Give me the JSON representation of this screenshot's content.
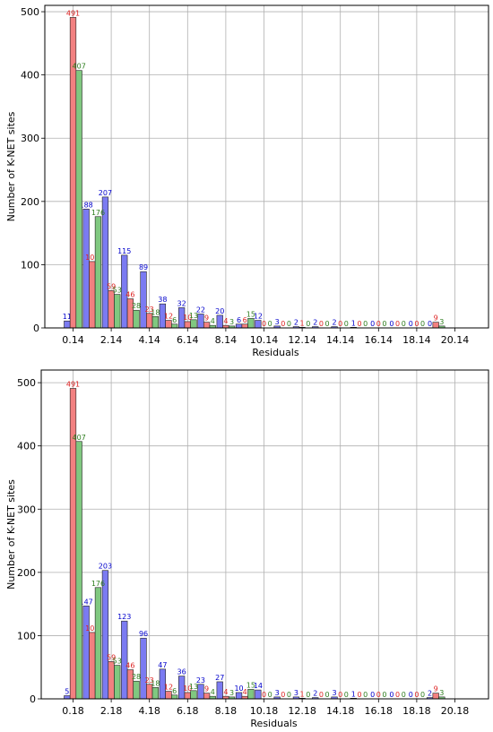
{
  "chart_data": [
    {
      "type": "bar",
      "xlabel": "Residuals",
      "ylabel": "Number of K-NET sites",
      "ylim": [
        0,
        510
      ],
      "yticks": [
        0,
        100,
        200,
        300,
        400,
        500
      ],
      "xticks": [
        "0.14",
        "2.14",
        "4.14",
        "6.14",
        "8.14",
        "10.14",
        "12.14",
        "14.14",
        "16.14",
        "18.14",
        "20.14"
      ],
      "grid": true,
      "series": [
        {
          "color": "#7b7bf2",
          "label_color": "#0000cc",
          "values": [
            11,
            188,
            207,
            115,
            89,
            38,
            32,
            22,
            20,
            6,
            12,
            3,
            2,
            2,
            2,
            1,
            0,
            0,
            0,
            0
          ]
        },
        {
          "color": "#f28080",
          "label_color": "#dd2222",
          "values": [
            491,
            105,
            59,
            46,
            23,
            12,
            10,
            9,
            4,
            6,
            0,
            0,
            1,
            0,
            0,
            0,
            0,
            0,
            0,
            9
          ]
        },
        {
          "color": "#80c880",
          "label_color": "#2e7d1e",
          "values": [
            407,
            176,
            53,
            28,
            18,
            6,
            13,
            4,
            3,
            15,
            0,
            0,
            0,
            0,
            0,
            0,
            0,
            0,
            0,
            3
          ]
        }
      ]
    },
    {
      "type": "bar",
      "xlabel": "Residuals",
      "ylabel": "Number of K-NET sites",
      "ylim": [
        0,
        520
      ],
      "yticks": [
        0,
        100,
        200,
        300,
        400,
        500
      ],
      "xticks": [
        "0.18",
        "2.18",
        "4.18",
        "6.18",
        "8.18",
        "10.18",
        "12.18",
        "14.18",
        "16.18",
        "18.18",
        "20.18"
      ],
      "grid": true,
      "series": [
        {
          "color": "#7b7bf2",
          "label_color": "#0000cc",
          "values": [
            5,
            147,
            203,
            123,
            96,
            47,
            36,
            23,
            27,
            10,
            14,
            3,
            3,
            2,
            3,
            1,
            0,
            0,
            0,
            2
          ]
        },
        {
          "color": "#f28080",
          "label_color": "#dd2222",
          "values": [
            491,
            105,
            59,
            46,
            23,
            12,
            10,
            9,
            4,
            4,
            0,
            0,
            1,
            0,
            0,
            0,
            0,
            0,
            0,
            9
          ]
        },
        {
          "color": "#80c880",
          "label_color": "#2e7d1e",
          "values": [
            407,
            176,
            53,
            28,
            18,
            6,
            13,
            4,
            3,
            15,
            0,
            0,
            0,
            0,
            0,
            0,
            0,
            0,
            0,
            3
          ]
        }
      ]
    }
  ]
}
